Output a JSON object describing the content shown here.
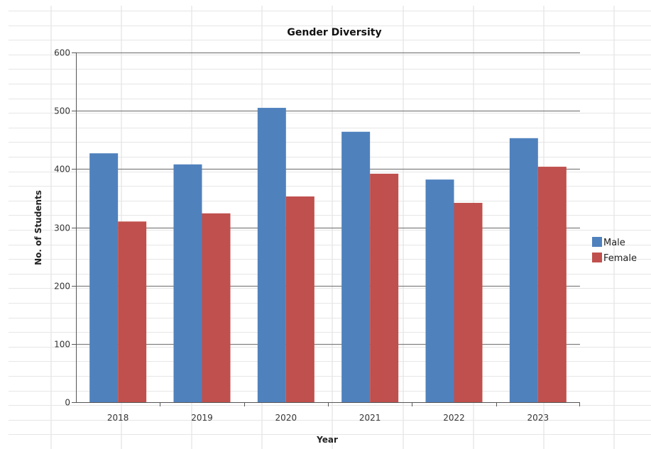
{
  "chart_data": {
    "type": "bar",
    "title": "Gender Diversity",
    "xlabel": "Year",
    "ylabel": "No. of Students",
    "categories": [
      "2018",
      "2019",
      "2020",
      "2021",
      "2022",
      "2023"
    ],
    "series": [
      {
        "name": "Male",
        "color": "#4f81bd",
        "values": [
          427,
          408,
          505,
          464,
          382,
          453
        ]
      },
      {
        "name": "Female",
        "color": "#c0504d",
        "values": [
          310,
          324,
          353,
          392,
          342,
          404
        ]
      }
    ],
    "ylim": [
      0,
      600
    ],
    "yticks": [
      0,
      100,
      200,
      300,
      400,
      500,
      600
    ],
    "grid": true,
    "legend_position": "right"
  }
}
